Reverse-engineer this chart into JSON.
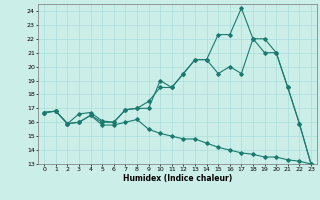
{
  "xlabel": "Humidex (Indice chaleur)",
  "bg_color": "#cceee8",
  "grid_color": "#aaddda",
  "line_color": "#1a7a6e",
  "xlim": [
    -0.5,
    23.5
  ],
  "ylim": [
    13,
    24.5
  ],
  "yticks": [
    13,
    14,
    15,
    16,
    17,
    18,
    19,
    20,
    21,
    22,
    23,
    24
  ],
  "xticks": [
    0,
    1,
    2,
    3,
    4,
    5,
    6,
    7,
    8,
    9,
    10,
    11,
    12,
    13,
    14,
    15,
    16,
    17,
    18,
    19,
    20,
    21,
    22,
    23
  ],
  "line1_x": [
    0,
    1,
    2,
    3,
    4,
    5,
    6,
    7,
    8,
    9,
    10,
    11,
    12,
    13,
    14,
    15,
    16,
    17,
    18,
    19,
    20,
    21,
    22,
    23
  ],
  "line1_y": [
    16.7,
    16.8,
    15.9,
    16.6,
    16.7,
    16.1,
    16.0,
    16.9,
    17.0,
    17.5,
    18.5,
    18.5,
    19.5,
    20.5,
    20.5,
    22.3,
    22.3,
    24.2,
    22.0,
    22.0,
    21.0,
    18.5,
    15.9,
    13.0
  ],
  "line2_x": [
    0,
    1,
    2,
    3,
    4,
    5,
    6,
    7,
    8,
    9,
    10,
    11,
    12,
    13,
    14,
    15,
    16,
    17,
    18,
    19,
    20,
    21,
    22,
    23
  ],
  "line2_y": [
    16.7,
    16.8,
    15.9,
    16.0,
    16.5,
    16.0,
    16.0,
    16.9,
    17.0,
    17.0,
    19.0,
    18.5,
    19.5,
    20.5,
    20.5,
    19.5,
    20.0,
    19.5,
    22.0,
    21.0,
    21.0,
    18.5,
    15.9,
    13.0
  ],
  "line3_x": [
    0,
    1,
    2,
    3,
    4,
    5,
    6,
    7,
    8,
    9,
    10,
    11,
    12,
    13,
    14,
    15,
    16,
    17,
    18,
    19,
    20,
    21,
    22,
    23
  ],
  "line3_y": [
    16.7,
    16.8,
    15.9,
    16.0,
    16.5,
    15.8,
    15.8,
    16.0,
    16.2,
    15.5,
    15.2,
    15.0,
    14.8,
    14.8,
    14.5,
    14.2,
    14.0,
    13.8,
    13.7,
    13.5,
    13.5,
    13.3,
    13.2,
    13.0
  ]
}
